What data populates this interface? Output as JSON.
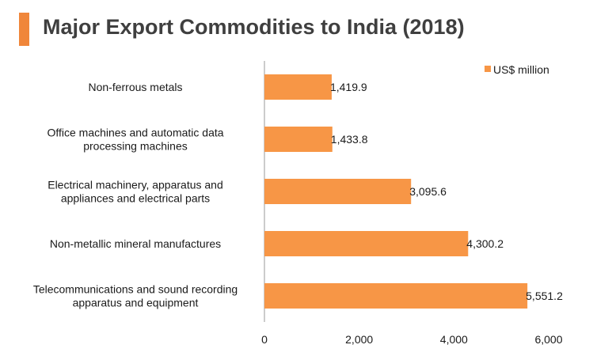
{
  "title": "Major Export Commodities to India (2018)",
  "colors": {
    "accent": "#f0863a",
    "bar": "#f79646",
    "axis": "#9a9a9a"
  },
  "chart_data": {
    "type": "bar",
    "orientation": "horizontal",
    "categories": [
      [
        "Non-ferrous metals"
      ],
      [
        "Office machines and automatic data",
        "processing machines"
      ],
      [
        "Electrical machinery, apparatus and",
        "appliances and electrical parts"
      ],
      [
        "Non-metallic mineral manufactures"
      ],
      [
        "Telecommunications and sound recording",
        "apparatus and equipment"
      ]
    ],
    "series": [
      {
        "name": "US$ million",
        "values": [
          1419.9,
          1433.8,
          3095.6,
          4300.2,
          5551.2
        ]
      }
    ],
    "value_labels": [
      "1,419.9",
      "1,433.8",
      "3,095.6",
      "4,300.2",
      "5,551.2"
    ],
    "xlim": [
      0,
      6000
    ],
    "xticks": [
      0,
      2000,
      4000,
      6000
    ],
    "xtick_labels": [
      "0",
      "2,000",
      "4,000",
      "6,000"
    ],
    "grid": false,
    "legend_position": "top-right"
  }
}
